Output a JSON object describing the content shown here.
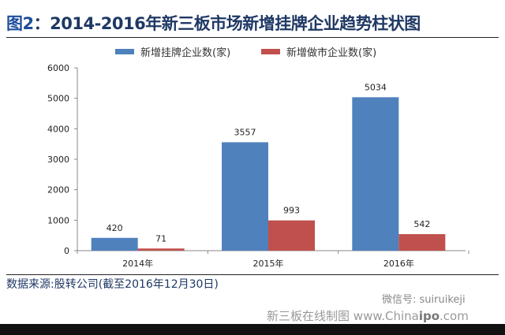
{
  "header": {
    "fig_label": "图2",
    "title": "：2014-2016年新三板市场新增挂牌企业趋势柱状图"
  },
  "watermark": {
    "cn": "新三板在线",
    "en": "Chinaipo.com"
  },
  "footer": {
    "source": "数据来源:股转公司(截至2016年12月30日)",
    "credit_cn": "新三板在线制图",
    "credit_www": "www.China",
    "credit_ipo": "ipo",
    "credit_com": ".com",
    "wechat": "微信号: suiruikeji"
  },
  "colors": {
    "blue": "#4f81bd",
    "red": "#c0504d",
    "title": "#1f3864"
  },
  "chart_data": {
    "type": "bar",
    "title": "2014-2016年新三板市场新增挂牌企业趋势柱状图",
    "categories": [
      "2014年",
      "2015年",
      "2016年"
    ],
    "series": [
      {
        "name": "新增挂牌企业数(家)",
        "values": [
          420,
          3557,
          5034
        ],
        "color": "#4f81bd"
      },
      {
        "name": "新增做市企业数(家)",
        "values": [
          71,
          993,
          542
        ],
        "color": "#c0504d"
      }
    ],
    "yticks": [
      0,
      1000,
      2000,
      3000,
      4000,
      5000,
      6000
    ],
    "ylim": [
      0,
      6000
    ],
    "xlabel": "",
    "ylabel": "",
    "grid": false,
    "legend": "top-center"
  }
}
